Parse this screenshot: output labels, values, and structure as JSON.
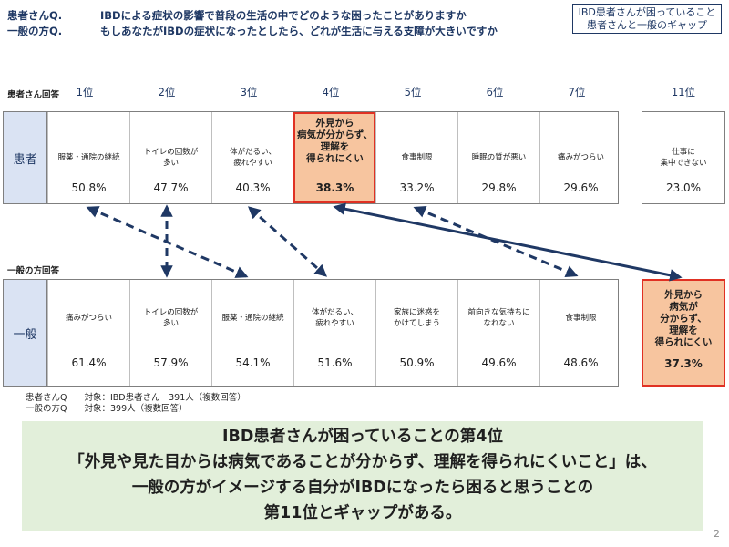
{
  "header": {
    "q1_label": "患者さんQ.",
    "q1_text": "IBDによる症状の影響で普段の生活の中でどのような困ったことがありますか",
    "q2_label": "一般の方Q.",
    "q2_text": "もしあなたがIBDの症状になったとしたら、どれが生活に与える支障が大きいですか"
  },
  "tag": {
    "line1": "IBD患者さんが困っていること",
    "line2": "患者さんと一般のギャップ"
  },
  "patient": {
    "section_label": "患者さん回答",
    "row_label": "患者",
    "ranks": [
      "1位",
      "2位",
      "3位",
      "4位",
      "5位",
      "6位",
      "7位"
    ],
    "items": [
      {
        "label": "服薬・通院の継続",
        "pct": "50.8%"
      },
      {
        "label": "トイレの回数が\n多い",
        "pct": "47.7%"
      },
      {
        "label": "体がだるい、\n疲れやすい",
        "pct": "40.3%"
      },
      {
        "label": "外見から\n病気が分からず、\n理解を\n得られにくい",
        "pct": "38.3%"
      },
      {
        "label": "食事制限",
        "pct": "33.2%"
      },
      {
        "label": "睡眠の質が悪い",
        "pct": "29.8%"
      },
      {
        "label": "痛みがつらい",
        "pct": "29.6%"
      }
    ],
    "rank11": {
      "rank": "11位",
      "label": "仕事に\n集中できない",
      "pct": "23.0%"
    }
  },
  "general": {
    "section_label": "一般の方回答",
    "row_label": "一般",
    "items": [
      {
        "label": "痛みがつらい",
        "pct": "61.4%"
      },
      {
        "label": "トイレの回数が\n多い",
        "pct": "57.9%"
      },
      {
        "label": "服薬・通院の継続",
        "pct": "54.1%"
      },
      {
        "label": "体がだるい、\n疲れやすい",
        "pct": "51.6%"
      },
      {
        "label": "家族に迷惑を\nかけてしまう",
        "pct": "50.9%"
      },
      {
        "label": "前向きな気持ちに\nなれない",
        "pct": "49.6%"
      },
      {
        "label": "食事制限",
        "pct": "48.6%"
      }
    ],
    "rank11": {
      "label": "外見から\n病気が\n分からず、\n理解を\n得られにくい",
      "pct": "37.3%"
    }
  },
  "notes": {
    "line1": "患者さんQ　　対象：IBD患者さん　391人（複数回答）",
    "line2": "一般の方Q　　対象：399人（複数回答）"
  },
  "summary": {
    "line1": "IBD患者さんが困っていることの第4位",
    "line2": "「外見や見た目からは病気であることが分からず、理解を得られにくいこと」は、",
    "line3": "一般の方がイメージする自分がIBDになったら困ると思うことの",
    "line4": "第11位とギャップがある。"
  },
  "page_number": "2",
  "colors": {
    "navy": "#1f3864",
    "highlight_fill": "#f7c59f",
    "highlight_border": "#e03123",
    "summary_bg": "#e2efda"
  }
}
